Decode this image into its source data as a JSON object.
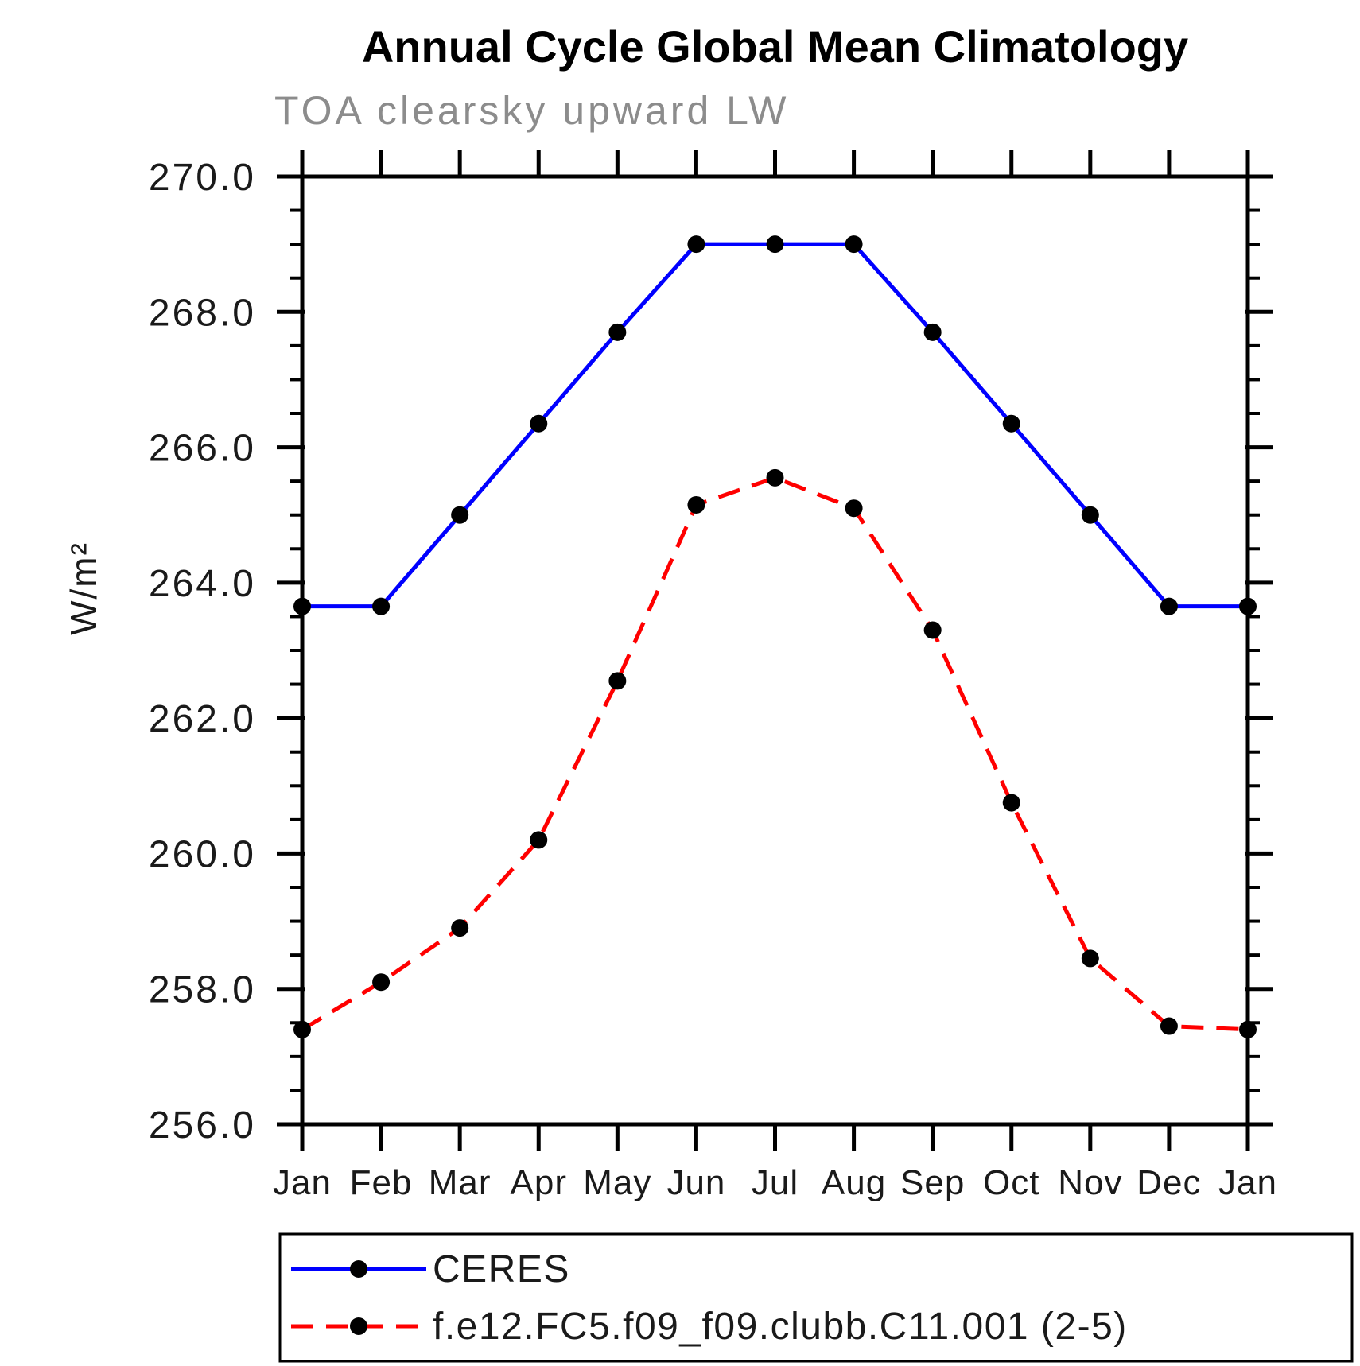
{
  "title": "Annual Cycle Global Mean Climatology",
  "chart_data": {
    "type": "line",
    "title": "Annual Cycle Global Mean Climatology",
    "subtitle": "TOA clearsky upward LW",
    "ylabel": "W/m²",
    "xlabel": "",
    "categories": [
      "Jan",
      "Feb",
      "Mar",
      "Apr",
      "May",
      "Jun",
      "Jul",
      "Aug",
      "Sep",
      "Oct",
      "Nov",
      "Dec",
      "Jan"
    ],
    "ylim": [
      256.0,
      270.0
    ],
    "ytick_major_interval": 2.0,
    "ytick_minor_interval": 0.5,
    "ytick_labels": [
      "256.0",
      "258.0",
      "260.0",
      "262.0",
      "264.0",
      "266.0",
      "268.0",
      "270.0"
    ],
    "grid": false,
    "legend_position": "bottom",
    "series": [
      {
        "name": "CERES",
        "line_style": "solid",
        "line_color": "#0000ff",
        "marker": "circle",
        "marker_color": "#000000",
        "values": [
          263.65,
          263.65,
          265.0,
          266.35,
          267.7,
          269.0,
          269.0,
          269.0,
          267.7,
          266.35,
          265.0,
          263.65,
          263.65
        ]
      },
      {
        "name": "f.e12.FC5.f09_f09.clubb.C11.001 (2-5)",
        "line_style": "dashed",
        "line_color": "#ff0000",
        "marker": "circle",
        "marker_color": "#000000",
        "values": [
          257.4,
          258.1,
          258.9,
          260.2,
          262.55,
          265.15,
          265.55,
          265.1,
          263.3,
          260.75,
          258.45,
          257.45,
          257.4
        ]
      }
    ]
  },
  "colors": {
    "axis": "#000000",
    "tick_label": "#1a1a1a",
    "subtitle": "#8c8c8c",
    "background": "#ffffff"
  }
}
